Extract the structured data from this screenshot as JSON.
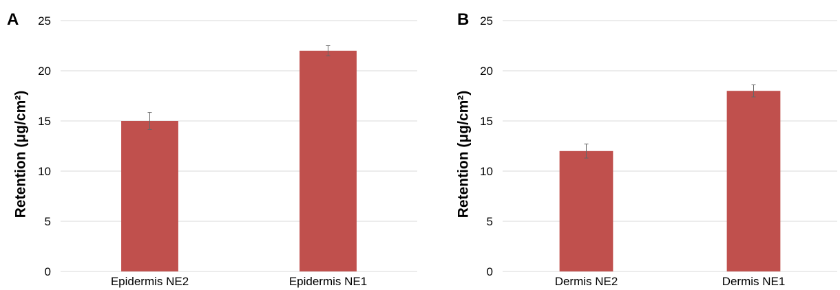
{
  "chart_data": [
    {
      "type": "bar",
      "panel_label": "A",
      "categories": [
        "Epidermis NE2",
        "Epidermis NE1"
      ],
      "values": [
        15,
        22
      ],
      "errors": [
        0.85,
        0.5
      ],
      "xlabel": "",
      "ylabel": "Retention (μg/cm²)",
      "ylim": [
        0,
        25
      ],
      "yticks": [
        "0",
        "5",
        "10",
        "15",
        "20",
        "25"
      ],
      "grid": true,
      "bar_color": "#c0504d"
    },
    {
      "type": "bar",
      "panel_label": "B",
      "categories": [
        "Dermis NE2",
        "Dermis NE1"
      ],
      "values": [
        12,
        18
      ],
      "errors": [
        0.7,
        0.6
      ],
      "xlabel": "",
      "ylabel": "Retention (μg/cm²)",
      "ylim": [
        0,
        25
      ],
      "yticks": [
        "0",
        "5",
        "10",
        "15",
        "20",
        "25"
      ],
      "grid": true,
      "bar_color": "#c0504d"
    }
  ]
}
